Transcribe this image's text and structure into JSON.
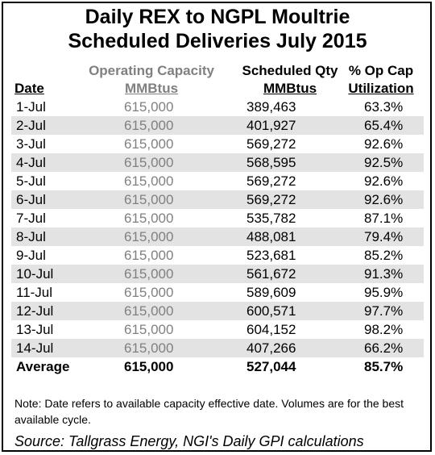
{
  "chart_data": {
    "type": "table",
    "title_line1": "Daily REX to NGPL Moultrie",
    "title_line2": "Scheduled Deliveries July 2015",
    "columns": {
      "date": "Date",
      "capacity_line1": "Operating Capacity",
      "capacity_line2": "MMBtus",
      "scheduled_line1": "Scheduled Qty",
      "scheduled_line2": "MMBtus",
      "util_line1": "% Op Cap",
      "util_line2": "Utilization"
    },
    "rows": [
      {
        "date": "1-Jul",
        "capacity": "615,000",
        "scheduled": "389,463",
        "util": "63.3%"
      },
      {
        "date": "2-Jul",
        "capacity": "615,000",
        "scheduled": "401,927",
        "util": "65.4%"
      },
      {
        "date": "3-Jul",
        "capacity": "615,000",
        "scheduled": "569,272",
        "util": "92.6%"
      },
      {
        "date": "4-Jul",
        "capacity": "615,000",
        "scheduled": "568,595",
        "util": "92.5%"
      },
      {
        "date": "5-Jul",
        "capacity": "615,000",
        "scheduled": "569,272",
        "util": "92.6%"
      },
      {
        "date": "6-Jul",
        "capacity": "615,000",
        "scheduled": "569,272",
        "util": "92.6%"
      },
      {
        "date": "7-Jul",
        "capacity": "615,000",
        "scheduled": "535,782",
        "util": "87.1%"
      },
      {
        "date": "8-Jul",
        "capacity": "615,000",
        "scheduled": "488,081",
        "util": "79.4%"
      },
      {
        "date": "9-Jul",
        "capacity": "615,000",
        "scheduled": "523,681",
        "util": "85.2%"
      },
      {
        "date": "10-Jul",
        "capacity": "615,000",
        "scheduled": "561,672",
        "util": "91.3%"
      },
      {
        "date": "11-Jul",
        "capacity": "615,000",
        "scheduled": "589,609",
        "util": "95.9%"
      },
      {
        "date": "12-Jul",
        "capacity": "615,000",
        "scheduled": "600,571",
        "util": "97.7%"
      },
      {
        "date": "13-Jul",
        "capacity": "615,000",
        "scheduled": "604,152",
        "util": "98.2%"
      },
      {
        "date": "14-Jul",
        "capacity": "615,000",
        "scheduled": "407,266",
        "util": "66.2%"
      }
    ],
    "average": {
      "date": "Average",
      "capacity": "615,000",
      "scheduled": "527,044",
      "util": "85.7%"
    },
    "note": "Note: Date refers to available capacity effective date.  Volumes are for the best available cycle.",
    "source": "Source: Tallgrass Energy, NGI's Daily GPI calculations",
    "colors": {
      "header_gray": "#808080",
      "row_band": "#e3e3e3",
      "border": "#000000"
    }
  }
}
